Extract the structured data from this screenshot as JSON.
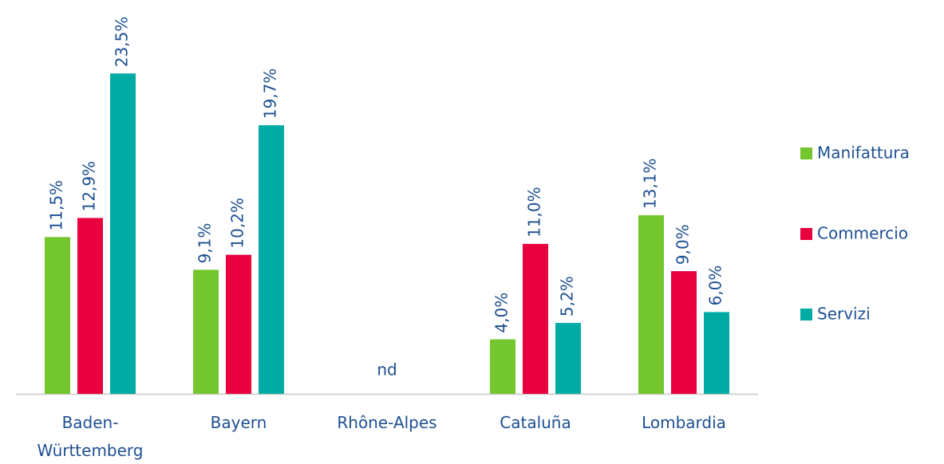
{
  "chart_data": {
    "type": "bar",
    "categories": [
      "Baden-Württemberg",
      "Bayern",
      "Rhône-Alpes",
      "Cataluña",
      "Lombardia"
    ],
    "series": [
      {
        "name": "Manifattura",
        "color": "#73c62d",
        "values": [
          11.5,
          9.1,
          null,
          4.0,
          13.1
        ],
        "value_labels": [
          "11,5%",
          "9,1%",
          null,
          "4,0%",
          "13,1%"
        ]
      },
      {
        "name": "Commercio",
        "color": "#e8003f",
        "values": [
          12.9,
          10.2,
          null,
          11.0,
          9.0
        ],
        "value_labels": [
          "12,9%",
          "10,2%",
          null,
          "11,0%",
          "9,0%"
        ]
      },
      {
        "name": "Servizi",
        "color": "#00aba4",
        "values": [
          23.5,
          19.7,
          null,
          5.2,
          6.0
        ],
        "value_labels": [
          "23,5%",
          "19,7%",
          null,
          "5,2%",
          "6,0%"
        ]
      }
    ],
    "annotations": [
      {
        "text": "nd",
        "x": "Rhône-Alpes"
      }
    ],
    "ylim": [
      0,
      25
    ],
    "legend": "right",
    "grid": false
  }
}
